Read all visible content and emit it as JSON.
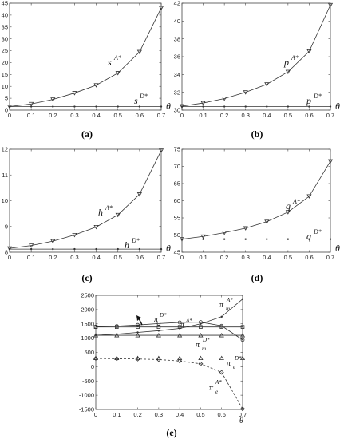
{
  "figure": {
    "labels": [
      "(a)",
      "(b)",
      "(c)",
      "(d)",
      "(e)"
    ],
    "theta": "θ"
  },
  "chart_data": [
    {
      "id": "a",
      "type": "line",
      "label": "(a)",
      "x": [
        0,
        0.1,
        0.2,
        0.3,
        0.4,
        0.5,
        0.6,
        0.7
      ],
      "xlim": [
        0,
        0.7
      ],
      "xticks": [
        "0",
        "0.1",
        "0.2",
        "0.3",
        "0.4",
        "0.5",
        "0.6",
        "0.7"
      ],
      "ylim": [
        0,
        45
      ],
      "yticks": [
        0,
        5,
        10,
        15,
        20,
        25,
        30,
        35,
        40,
        45
      ],
      "xlabel": "θ",
      "series": [
        {
          "name": "A*",
          "base": "s",
          "sup": "A*",
          "marker": "tri-down",
          "dashed": false,
          "values": [
            1.5,
            2.6,
            4.5,
            7.2,
            10.5,
            15.6,
            24.5,
            43.0
          ]
        },
        {
          "name": "D*",
          "base": "s",
          "sup": "D*",
          "marker": "dot",
          "dashed": false,
          "values": [
            1.5,
            1.5,
            1.5,
            1.5,
            1.5,
            1.5,
            1.5,
            1.5
          ]
        }
      ]
    },
    {
      "id": "b",
      "type": "line",
      "label": "(b)",
      "x": [
        0,
        0.1,
        0.2,
        0.3,
        0.4,
        0.5,
        0.6,
        0.7
      ],
      "xlim": [
        0,
        0.7
      ],
      "xticks": [
        "0",
        "0.1",
        "0.2",
        "0.3",
        "0.4",
        "0.5",
        "0.6",
        "0.7"
      ],
      "ylim": [
        30,
        42
      ],
      "yticks": [
        30,
        32,
        34,
        36,
        38,
        40,
        42
      ],
      "xlabel": "θ",
      "series": [
        {
          "name": "A*",
          "base": "p",
          "sup": "A*",
          "marker": "tri-down",
          "dashed": false,
          "values": [
            30.45,
            30.8,
            31.3,
            32.0,
            32.9,
            34.3,
            36.6,
            41.8
          ]
        },
        {
          "name": "D*",
          "base": "p",
          "sup": "D*",
          "marker": "dot",
          "dashed": false,
          "values": [
            30.4,
            30.4,
            30.4,
            30.4,
            30.4,
            30.4,
            30.4,
            30.4
          ]
        }
      ]
    },
    {
      "id": "c",
      "type": "line",
      "label": "(c)",
      "x": [
        0,
        0.1,
        0.2,
        0.3,
        0.4,
        0.5,
        0.6,
        0.7
      ],
      "xlim": [
        0,
        0.7
      ],
      "xticks": [
        "0",
        "0.1",
        "0.2",
        "0.3",
        "0.4",
        "0.5",
        "0.6",
        "0.7"
      ],
      "ylim": [
        8,
        12
      ],
      "yticks": [
        8,
        9,
        10,
        11,
        12
      ],
      "xlabel": "θ",
      "series": [
        {
          "name": "A*",
          "base": "h",
          "sup": "A*",
          "marker": "tri-down",
          "dashed": false,
          "values": [
            8.15,
            8.26,
            8.43,
            8.67,
            8.98,
            9.45,
            10.25,
            11.95
          ]
        },
        {
          "name": "D*",
          "base": "h",
          "sup": "D*",
          "marker": "dot",
          "dashed": false,
          "values": [
            8.12,
            8.12,
            8.12,
            8.12,
            8.12,
            8.12,
            8.12,
            8.12
          ]
        }
      ]
    },
    {
      "id": "d",
      "type": "line",
      "label": "(d)",
      "x": [
        0,
        0.1,
        0.2,
        0.3,
        0.4,
        0.5,
        0.6,
        0.7
      ],
      "xlim": [
        0,
        0.7
      ],
      "xticks": [
        "0",
        "0.1",
        "0.2",
        "0.3",
        "0.4",
        "0.5",
        "0.6",
        "0.7"
      ],
      "ylim": [
        45,
        75
      ],
      "yticks": [
        45,
        50,
        55,
        60,
        65,
        70,
        75
      ],
      "xlabel": "θ",
      "series": [
        {
          "name": "A*",
          "base": "q",
          "sup": "A*",
          "marker": "tri-down",
          "dashed": false,
          "values": [
            48.8,
            49.6,
            50.7,
            52.0,
            53.9,
            56.7,
            61.3,
            71.5
          ]
        },
        {
          "name": "D*",
          "base": "q",
          "sup": "D*",
          "marker": "dot",
          "dashed": false,
          "values": [
            48.8,
            48.8,
            48.8,
            48.8,
            48.8,
            48.8,
            48.8,
            48.8
          ]
        }
      ]
    },
    {
      "id": "e",
      "type": "line",
      "label": "(e)",
      "x": [
        0,
        0.1,
        0.2,
        0.3,
        0.4,
        0.5,
        0.6,
        0.7
      ],
      "xlim": [
        0,
        0.7
      ],
      "xticks": [
        "0",
        "0.1",
        "0.2",
        "0.3",
        "0.4",
        "0.5",
        "0.6",
        "0.7"
      ],
      "ylim": [
        -1500,
        2500
      ],
      "yticks": [
        -1500,
        -1000,
        -500,
        0,
        500,
        1000,
        1500,
        2000,
        2500
      ],
      "xlabel": "θ",
      "series": [
        {
          "name": "π A*",
          "base": "π",
          "sup": "A*",
          "marker": "circle",
          "dashed": false,
          "values": [
            1400,
            1420,
            1460,
            1510,
            1550,
            1560,
            1430,
            940
          ]
        },
        {
          "name": "π D*",
          "base": "π",
          "sup": "D*",
          "marker": "square",
          "dashed": false,
          "values": [
            1390,
            1390,
            1390,
            1390,
            1390,
            1390,
            1390,
            1390
          ]
        },
        {
          "name": "π_m A*",
          "base": "π",
          "sub": "m",
          "sup": "A*",
          "marker": "dot",
          "dashed": false,
          "values": [
            1100,
            1140,
            1200,
            1260,
            1340,
            1500,
            1750,
            2370
          ]
        },
        {
          "name": "π_m D*",
          "base": "π",
          "sub": "m",
          "sup": "D*",
          "marker": "tri-up",
          "dashed": false,
          "values": [
            1100,
            1100,
            1100,
            1100,
            1100,
            1100,
            1100,
            1100
          ]
        },
        {
          "name": "π_e D*",
          "base": "π",
          "sub": "e",
          "sup": "D*",
          "marker": "tri-up",
          "dashed": true,
          "values": [
            300,
            300,
            300,
            300,
            300,
            300,
            300,
            300
          ]
        },
        {
          "name": "π_e A*",
          "base": "π",
          "sub": "e",
          "sup": "A*",
          "marker": "diamond",
          "dashed": true,
          "values": [
            290,
            280,
            270,
            250,
            200,
            100,
            -200,
            -1480
          ]
        }
      ]
    }
  ]
}
